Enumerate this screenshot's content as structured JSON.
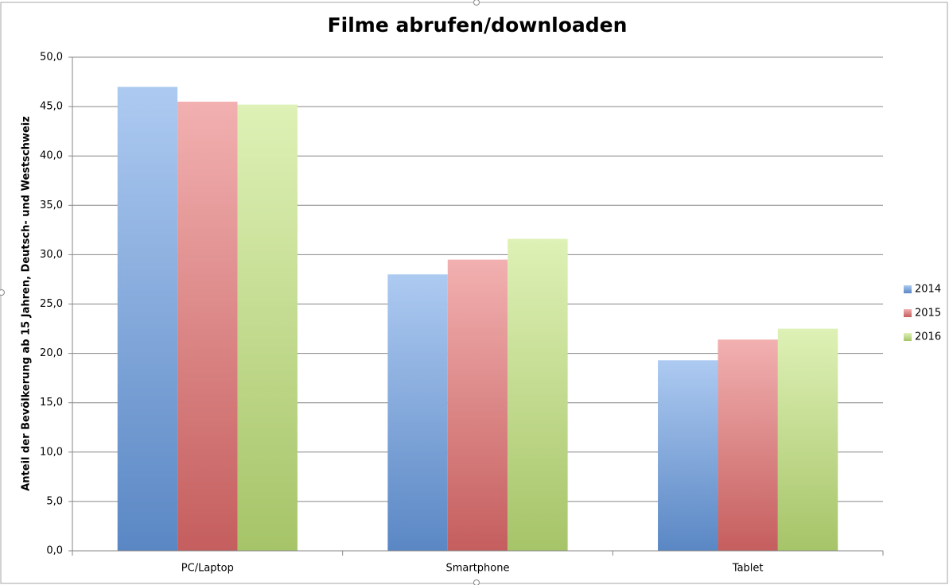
{
  "chart_data": {
    "type": "bar",
    "title": "Filme abrufen/downloaden",
    "y_label": "Anteil der Bevölkerung ab 15 Jahren, Deutsch- und Westschweiz",
    "categories": [
      "PC/Laptop",
      "Smartphone",
      "Tablet"
    ],
    "series": [
      {
        "name": "2014",
        "color": "#6a9fe6",
        "values": [
          47.0,
          28.0,
          19.3
        ]
      },
      {
        "name": "2015",
        "color": "#e86f6f",
        "values": [
          45.5,
          29.5,
          21.4
        ]
      },
      {
        "name": "2016",
        "color": "#c3e67a",
        "values": [
          45.2,
          31.6,
          22.5
        ]
      }
    ],
    "ylim": [
      0,
      50
    ],
    "yticks": [
      {
        "value": 0,
        "label": "0,0"
      },
      {
        "value": 5,
        "label": "5,0"
      },
      {
        "value": 10,
        "label": "10,0"
      },
      {
        "value": 15,
        "label": "15,0"
      },
      {
        "value": 20,
        "label": "20,0"
      },
      {
        "value": 25,
        "label": "25,0"
      },
      {
        "value": 30,
        "label": "30,0"
      },
      {
        "value": 35,
        "label": "35,0"
      },
      {
        "value": 40,
        "label": "40,0"
      },
      {
        "value": 45,
        "label": "45,0"
      },
      {
        "value": 50,
        "label": "50,0"
      }
    ],
    "grid": true,
    "legend": "right"
  }
}
